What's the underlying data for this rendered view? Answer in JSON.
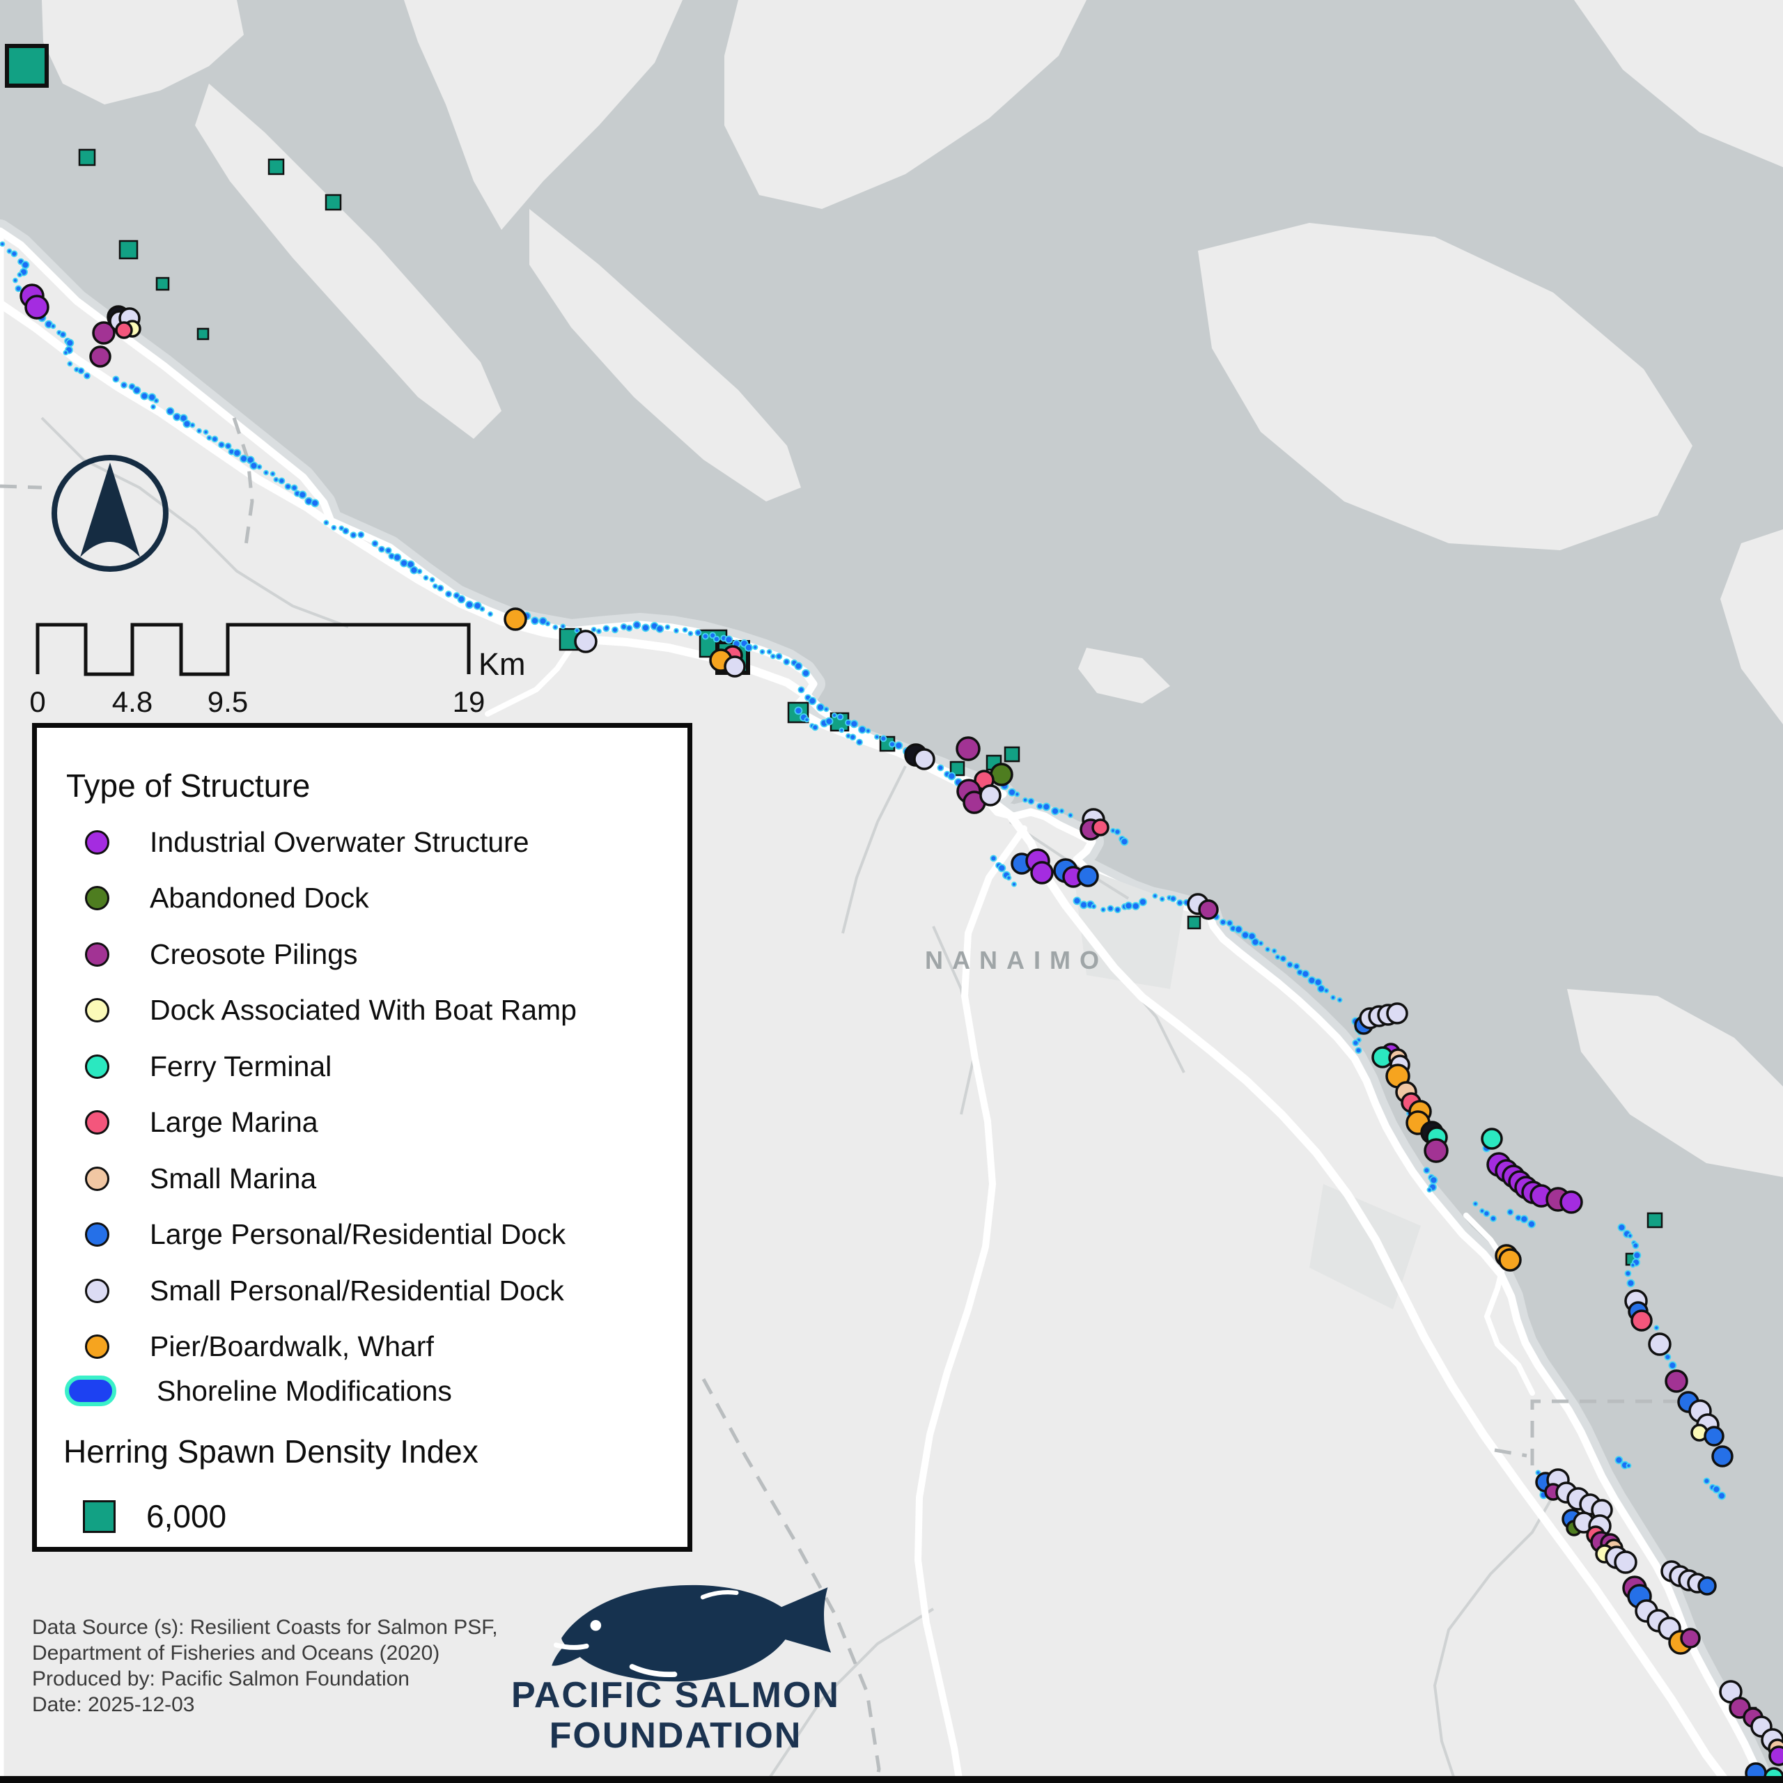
{
  "legend": {
    "title": "Type of Structure",
    "items": [
      {
        "key": "industrial",
        "label": "Industrial Overwater Structure"
      },
      {
        "key": "abandoned",
        "label": "Abandoned Dock"
      },
      {
        "key": "creosote",
        "label": "Creosote Pilings"
      },
      {
        "key": "boatramp",
        "label": "Dock Associated With Boat Ramp"
      },
      {
        "key": "ferry",
        "label": "Ferry Terminal"
      },
      {
        "key": "large_marina",
        "label": "Large Marina"
      },
      {
        "key": "small_marina",
        "label": "Small Marina"
      },
      {
        "key": "large_dock",
        "label": "Large Personal/Residential Dock"
      },
      {
        "key": "small_dock",
        "label": "Small Personal/Residential Dock"
      },
      {
        "key": "pier",
        "label": "Pier/Boardwalk, Wharf"
      }
    ],
    "shoreline_label": "Shoreline Modifications",
    "herring_header": "Herring Spawn Density Index",
    "herring_value": "6,000"
  },
  "colors": {
    "industrial": "#a42ce0",
    "abandoned": "#4e7d20",
    "creosote": "#a23394",
    "boatramp": "#fbfab8",
    "ferry": "#2be8c0",
    "large_marina": "#f4567c",
    "small_marina": "#f1c7a3",
    "large_dock": "#2570e8",
    "small_dock": "#dcdcf4",
    "pier": "#f6a41f",
    "black": "#14141c",
    "herring_square": "#12a184",
    "shoreline_fill": "#1d41f2",
    "shoreline_stroke": "#3af0c9",
    "shoreline_dot": "#1b6ef5",
    "shoreline_dot_edge": "#44d4f2",
    "sea": "#c7ccce",
    "land": "#ececec",
    "logo_navy": "#16324f"
  },
  "scalebar": {
    "ticks": [
      "0",
      "4.8",
      "9.5",
      "19"
    ],
    "unit": "Km"
  },
  "place_labels": {
    "city": "NANAIMO"
  },
  "attribution": [
    "Data Source (s): Resilient Coasts for Salmon PSF,",
    "Department of Fisheries and Oceans (2020)",
    "Produced by: Pacific Salmon Foundation",
    "Date: 2025-12-03"
  ],
  "logo": {
    "line1": "PACIFIC SALMON",
    "line2": "FOUNDATION"
  },
  "markers": {
    "squares": [
      [
        10,
        66,
        57
      ],
      [
        114,
        215,
        22
      ],
      [
        386,
        229,
        21
      ],
      [
        468,
        280,
        21
      ],
      [
        172,
        346,
        25
      ],
      [
        225,
        399,
        17
      ],
      [
        284,
        472,
        15
      ],
      [
        804,
        903,
        30
      ],
      [
        1005,
        905,
        38
      ],
      [
        1030,
        922,
        44
      ],
      [
        1132,
        1009,
        28
      ],
      [
        1193,
        1024,
        25
      ],
      [
        1264,
        1058,
        20
      ],
      [
        1365,
        1094,
        19
      ],
      [
        1417,
        1085,
        20
      ],
      [
        1443,
        1073,
        20
      ],
      [
        1706,
        1316,
        17
      ],
      [
        2366,
        1742,
        20
      ],
      [
        2335,
        1800,
        16
      ],
      [
        2505,
        2452,
        16
      ]
    ],
    "circles": [
      [
        "industrial",
        46,
        425,
        16
      ],
      [
        "industrial",
        53,
        441,
        16
      ],
      [
        "creosote",
        149,
        478,
        15
      ],
      [
        "creosote",
        144,
        512,
        14
      ],
      [
        "black",
        170,
        455,
        15
      ],
      [
        "small_dock",
        172,
        461,
        14
      ],
      [
        "small_dock",
        186,
        457,
        14
      ],
      [
        "boatramp",
        190,
        472,
        11
      ],
      [
        "large_marina",
        178,
        474,
        11
      ],
      [
        "pier",
        740,
        889,
        15
      ],
      [
        "small_dock",
        841,
        921,
        15
      ],
      [
        "large_marina",
        1052,
        941,
        13
      ],
      [
        "pier",
        1035,
        948,
        15
      ],
      [
        "small_dock",
        1055,
        957,
        14
      ],
      [
        "black",
        1315,
        1084,
        15
      ],
      [
        "small_dock",
        1327,
        1090,
        14
      ],
      [
        "creosote",
        1390,
        1075,
        16
      ],
      [
        "abandoned",
        1438,
        1112,
        15
      ],
      [
        "large_marina",
        1413,
        1120,
        13
      ],
      [
        "creosote",
        1391,
        1136,
        16
      ],
      [
        "creosote",
        1399,
        1152,
        15
      ],
      [
        "small_dock",
        1422,
        1142,
        14
      ],
      [
        "small_dock",
        1570,
        1177,
        15
      ],
      [
        "creosote",
        1566,
        1191,
        14
      ],
      [
        "large_marina",
        1580,
        1188,
        11
      ],
      [
        "large_dock",
        1467,
        1240,
        14
      ],
      [
        "industrial",
        1490,
        1236,
        16
      ],
      [
        "industrial",
        1496,
        1253,
        15
      ],
      [
        "large_dock",
        1530,
        1250,
        16
      ],
      [
        "industrial",
        1541,
        1259,
        14
      ],
      [
        "large_dock",
        1562,
        1258,
        14
      ],
      [
        "small_dock",
        1720,
        1298,
        14
      ],
      [
        "creosote",
        1735,
        1306,
        13
      ],
      [
        "large_dock",
        1958,
        1472,
        12
      ],
      [
        "small_dock",
        1967,
        1462,
        14
      ],
      [
        "small_dock",
        1980,
        1459,
        14
      ],
      [
        "small_dock",
        1993,
        1457,
        14
      ],
      [
        "small_dock",
        2006,
        1455,
        14
      ],
      [
        "industrial",
        1997,
        1511,
        12
      ],
      [
        "ferry",
        1985,
        1518,
        14
      ],
      [
        "small_marina",
        2007,
        1519,
        12
      ],
      [
        "small_dock",
        2010,
        1529,
        13
      ],
      [
        "pier",
        2007,
        1545,
        16
      ],
      [
        "small_marina",
        2019,
        1568,
        14
      ],
      [
        "large_marina",
        2026,
        1583,
        13
      ],
      [
        "pier",
        2039,
        1596,
        15
      ],
      [
        "pier",
        2036,
        1612,
        16
      ],
      [
        "black",
        2056,
        1626,
        15
      ],
      [
        "ferry",
        2063,
        1633,
        14
      ],
      [
        "creosote",
        2062,
        1652,
        16
      ],
      [
        "ferry",
        2142,
        1635,
        14
      ],
      [
        "industrial",
        2152,
        1672,
        16
      ],
      [
        "industrial",
        2163,
        1681,
        15
      ],
      [
        "industrial",
        2173,
        1689,
        15
      ],
      [
        "industrial",
        2182,
        1697,
        15
      ],
      [
        "industrial",
        2191,
        1705,
        15
      ],
      [
        "industrial",
        2201,
        1712,
        15
      ],
      [
        "industrial",
        2213,
        1717,
        15
      ],
      [
        "creosote",
        2237,
        1722,
        16
      ],
      [
        "industrial",
        2256,
        1726,
        15
      ],
      [
        "pier",
        2163,
        1803,
        15
      ],
      [
        "pier",
        2168,
        1809,
        15
      ],
      [
        "small_dock",
        2349,
        1868,
        15
      ],
      [
        "large_dock",
        2352,
        1883,
        13
      ],
      [
        "large_marina",
        2357,
        1896,
        14
      ],
      [
        "small_dock",
        2383,
        1930,
        15
      ],
      [
        "creosote",
        2407,
        1983,
        15
      ],
      [
        "large_dock",
        2424,
        2013,
        14
      ],
      [
        "small_dock",
        2441,
        2026,
        15
      ],
      [
        "small_dock",
        2452,
        2046,
        15
      ],
      [
        "boatramp",
        2440,
        2057,
        11
      ],
      [
        "large_dock",
        2461,
        2062,
        13
      ],
      [
        "large_dock",
        2473,
        2091,
        14
      ],
      [
        "large_dock",
        2219,
        2128,
        13
      ],
      [
        "small_dock",
        2237,
        2125,
        15
      ],
      [
        "creosote",
        2230,
        2142,
        11
      ],
      [
        "small_dock",
        2249,
        2143,
        14
      ],
      [
        "small_dock",
        2266,
        2152,
        15
      ],
      [
        "small_dock",
        2283,
        2160,
        14
      ],
      [
        "small_dock",
        2300,
        2168,
        14
      ],
      [
        "large_dock",
        2257,
        2181,
        13
      ],
      [
        "abandoned",
        2260,
        2194,
        10
      ],
      [
        "small_dock",
        2274,
        2186,
        14
      ],
      [
        "small_dock",
        2297,
        2191,
        15
      ],
      [
        "large_marina",
        2291,
        2204,
        12
      ],
      [
        "creosote",
        2299,
        2214,
        14
      ],
      [
        "creosote",
        2312,
        2216,
        13
      ],
      [
        "small_marina",
        2317,
        2223,
        12
      ],
      [
        "boatramp",
        2304,
        2231,
        12
      ],
      [
        "small_dock",
        2321,
        2236,
        15
      ],
      [
        "small_dock",
        2334,
        2243,
        15
      ],
      [
        "small_dock",
        2400,
        2256,
        14
      ],
      [
        "small_dock",
        2412,
        2263,
        14
      ],
      [
        "small_dock",
        2425,
        2269,
        14
      ],
      [
        "small_dock",
        2437,
        2273,
        13
      ],
      [
        "large_dock",
        2451,
        2277,
        12
      ],
      [
        "creosote",
        2347,
        2280,
        16
      ],
      [
        "large_dock",
        2354,
        2292,
        16
      ],
      [
        "small_dock",
        2364,
        2313,
        15
      ],
      [
        "small_dock",
        2381,
        2327,
        15
      ],
      [
        "small_dock",
        2397,
        2338,
        15
      ],
      [
        "pier",
        2413,
        2358,
        16
      ],
      [
        "creosote",
        2427,
        2352,
        13
      ],
      [
        "small_dock",
        2485,
        2429,
        15
      ],
      [
        "creosote",
        2498,
        2452,
        14
      ],
      [
        "creosote",
        2517,
        2466,
        13
      ],
      [
        "small_dock",
        2529,
        2479,
        14
      ],
      [
        "small_dock",
        2545,
        2498,
        15
      ],
      [
        "small_marina",
        2552,
        2510,
        12
      ],
      [
        "industrial",
        2554,
        2521,
        13
      ],
      [
        "large_dock",
        2521,
        2546,
        14
      ],
      [
        "ferry",
        2547,
        2552,
        13
      ]
    ]
  },
  "shoreline_segments": [
    [
      [
        5,
        352
      ],
      [
        22,
        366
      ],
      [
        38,
        382
      ],
      [
        30,
        396
      ],
      [
        14,
        406
      ]
    ],
    [
      [
        28,
        416
      ],
      [
        44,
        430
      ],
      [
        58,
        442
      ],
      [
        50,
        454
      ]
    ],
    [
      [
        62,
        458
      ],
      [
        78,
        470
      ],
      [
        92,
        482
      ],
      [
        102,
        494
      ],
      [
        96,
        508
      ],
      [
        86,
        518
      ]
    ],
    [
      [
        102,
        524
      ],
      [
        118,
        534
      ],
      [
        132,
        542
      ]
    ],
    [
      [
        168,
        546
      ],
      [
        198,
        562
      ],
      [
        226,
        577
      ],
      [
        214,
        588
      ]
    ],
    [
      [
        246,
        592
      ],
      [
        278,
        612
      ],
      [
        310,
        632
      ],
      [
        342,
        652
      ],
      [
        374,
        672
      ],
      [
        406,
        692
      ],
      [
        436,
        712
      ],
      [
        458,
        730
      ]
    ],
    [
      [
        470,
        752
      ],
      [
        498,
        764
      ],
      [
        526,
        772
      ]
    ],
    [
      [
        540,
        782
      ],
      [
        572,
        802
      ],
      [
        604,
        822
      ],
      [
        634,
        846
      ],
      [
        664,
        862
      ],
      [
        694,
        876
      ],
      [
        714,
        884
      ]
    ],
    [
      [
        758,
        886
      ],
      [
        788,
        897
      ],
      [
        816,
        903
      ]
    ],
    [
      [
        830,
        907
      ],
      [
        872,
        904
      ],
      [
        916,
        899
      ],
      [
        960,
        902
      ],
      [
        1004,
        910
      ],
      [
        1048,
        920
      ],
      [
        1086,
        931
      ],
      [
        1120,
        944
      ],
      [
        1148,
        958
      ],
      [
        1166,
        972
      ]
    ],
    [
      [
        1152,
        992
      ],
      [
        1168,
        1008
      ],
      [
        1188,
        1020
      ],
      [
        1208,
        1031
      ],
      [
        1228,
        1041
      ],
      [
        1248,
        1051
      ],
      [
        1270,
        1062
      ],
      [
        1292,
        1072
      ],
      [
        1312,
        1082
      ]
    ],
    [
      [
        1148,
        1022
      ],
      [
        1160,
        1035
      ],
      [
        1172,
        1046
      ],
      [
        1185,
        1040
      ],
      [
        1196,
        1028
      ]
    ],
    [
      [
        1210,
        1050
      ],
      [
        1226,
        1060
      ],
      [
        1242,
        1068
      ]
    ],
    [
      [
        1352,
        1104
      ],
      [
        1368,
        1116
      ],
      [
        1384,
        1127
      ]
    ],
    [
      [
        1444,
        1130
      ],
      [
        1462,
        1142
      ],
      [
        1482,
        1152
      ],
      [
        1504,
        1160
      ],
      [
        1526,
        1166
      ],
      [
        1548,
        1172
      ]
    ],
    [
      [
        1590,
        1186
      ],
      [
        1606,
        1196
      ],
      [
        1616,
        1210
      ],
      [
        1620,
        1224
      ]
    ],
    [
      [
        1428,
        1234
      ],
      [
        1440,
        1248
      ],
      [
        1450,
        1262
      ],
      [
        1462,
        1274
      ]
    ],
    [
      [
        1548,
        1295
      ],
      [
        1572,
        1303
      ],
      [
        1596,
        1306
      ],
      [
        1622,
        1302
      ],
      [
        1648,
        1294
      ]
    ],
    [
      [
        1660,
        1288
      ],
      [
        1686,
        1292
      ],
      [
        1710,
        1300
      ]
    ],
    [
      [
        1748,
        1318
      ],
      [
        1780,
        1336
      ],
      [
        1812,
        1356
      ],
      [
        1844,
        1378
      ],
      [
        1876,
        1400
      ],
      [
        1906,
        1424
      ],
      [
        1930,
        1444
      ]
    ],
    [
      [
        1948,
        1468
      ],
      [
        1954,
        1484
      ],
      [
        1948,
        1499
      ],
      [
        1953,
        1514
      ]
    ],
    [
      [
        2018,
        1590
      ],
      [
        2028,
        1604
      ]
    ],
    [
      [
        2050,
        1682
      ],
      [
        2060,
        1696
      ],
      [
        2054,
        1710
      ],
      [
        2058,
        1724
      ]
    ],
    [
      [
        2136,
        1650
      ],
      [
        2144,
        1662
      ]
    ],
    [
      [
        2120,
        1730
      ],
      [
        2136,
        1744
      ],
      [
        2152,
        1752
      ]
    ],
    [
      [
        2170,
        1742
      ],
      [
        2190,
        1752
      ],
      [
        2208,
        1760
      ]
    ],
    [
      [
        2330,
        1764
      ],
      [
        2342,
        1776
      ],
      [
        2350,
        1790
      ],
      [
        2352,
        1804
      ],
      [
        2346,
        1818
      ],
      [
        2339,
        1830
      ],
      [
        2343,
        1844
      ],
      [
        2351,
        1856
      ]
    ],
    [
      [
        2380,
        1908
      ],
      [
        2390,
        1916
      ]
    ],
    [
      [
        2396,
        1950
      ],
      [
        2403,
        1962
      ],
      [
        2409,
        1973
      ]
    ],
    [
      [
        2326,
        2098
      ],
      [
        2340,
        2106
      ],
      [
        2352,
        2112
      ]
    ],
    [
      [
        2210,
        2116
      ],
      [
        2214,
        2132
      ],
      [
        2218,
        2148
      ],
      [
        2214,
        2162
      ]
    ],
    [
      [
        2452,
        2128
      ],
      [
        2466,
        2140
      ],
      [
        2478,
        2152
      ]
    ]
  ]
}
